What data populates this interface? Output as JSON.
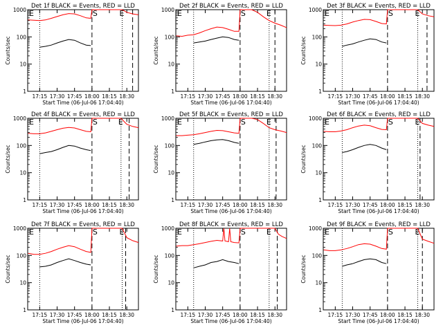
{
  "colors": {
    "events": "#000000",
    "lld": "#ff0000",
    "axes": "#000000",
    "background": "#ffffff"
  },
  "chart_data": [
    {
      "type": "line",
      "title": "Det 1f BLACK = Events, RED = LLD",
      "xlabel": "Start Time (06-Jul-06 17:04:40)",
      "ylabel": "Counts/sec",
      "yscale": "log",
      "ylim": [
        1,
        1000
      ],
      "xlim": [
        "17:04:40",
        "18:40:00"
      ],
      "xticks": [
        "17:15",
        "17:30",
        "17:45",
        "18:00",
        "18:15",
        "18:30"
      ],
      "yticks": [
        "1",
        "10",
        "100",
        "1000"
      ],
      "markers": [
        "E",
        "S",
        "E"
      ],
      "vlines_dashed": [
        "18:00",
        "18:35"
      ],
      "vlines_dotted": [
        "17:15",
        "18:26"
      ],
      "series": [
        {
          "name": "BLACK = Events",
          "color": "black",
          "x": [
            "17:15",
            "17:20",
            "17:25",
            "17:30",
            "17:35",
            "17:40",
            "17:45",
            "17:50",
            "17:55",
            "17:59"
          ],
          "y": [
            42,
            45,
            50,
            60,
            70,
            80,
            75,
            60,
            50,
            48
          ]
        },
        {
          "name": "RED = LLD",
          "color": "red",
          "x": [
            "17:05",
            "17:10",
            "17:15",
            "17:20",
            "17:25",
            "17:30",
            "17:35",
            "17:40",
            "17:45",
            "17:50",
            "17:55",
            "17:59",
            "18:00",
            "18:26",
            "18:30",
            "18:35",
            "18:40"
          ],
          "y": [
            420,
            410,
            400,
            420,
            480,
            560,
            650,
            720,
            700,
            600,
            500,
            480,
            1000,
            1000,
            800,
            700,
            650
          ]
        }
      ]
    },
    {
      "type": "line",
      "title": "Det 2f BLACK = Events, RED = LLD",
      "xlabel": "Start Time (06-Jul-06 17:04:40)",
      "ylabel": "Counts/sec",
      "yscale": "log",
      "ylim": [
        1,
        1000
      ],
      "xlim": [
        "17:04:40",
        "18:40:00"
      ],
      "xticks": [
        "17:15",
        "17:30",
        "17:45",
        "18:00",
        "18:15",
        "18:30"
      ],
      "yticks": [
        "1",
        "10",
        "100",
        "1000"
      ],
      "markers": [
        "E",
        "S",
        "E"
      ],
      "vlines_dashed": [
        "18:00",
        "18:30"
      ],
      "vlines_dotted": [
        "17:20",
        "18:25"
      ],
      "series": [
        {
          "name": "BLACK = Events",
          "color": "black",
          "x": [
            "17:20",
            "17:25",
            "17:30",
            "17:35",
            "17:40",
            "17:45",
            "17:50",
            "17:55",
            "17:59"
          ],
          "y": [
            60,
            65,
            70,
            80,
            90,
            100,
            95,
            80,
            75
          ]
        },
        {
          "name": "RED = LLD",
          "color": "red",
          "x": [
            "17:05",
            "17:10",
            "17:15",
            "17:20",
            "17:25",
            "17:30",
            "17:35",
            "17:40",
            "17:45",
            "17:50",
            "17:55",
            "17:59",
            "18:00",
            "18:05",
            "18:10",
            "18:15",
            "18:20",
            "18:25",
            "18:30",
            "18:35",
            "18:40"
          ],
          "y": [
            110,
            105,
            115,
            120,
            140,
            170,
            200,
            230,
            220,
            190,
            160,
            160,
            1000,
            1000,
            1000,
            800,
            550,
            400,
            320,
            270,
            220
          ]
        }
      ]
    },
    {
      "type": "line",
      "title": "Det 3f BLACK = Events, RED = LLD",
      "xlabel": "Start Time (06-Jul-06 17:04:40)",
      "ylabel": "Counts/sec",
      "yscale": "log",
      "ylim": [
        1,
        1000
      ],
      "xlim": [
        "17:04:40",
        "18:40:00"
      ],
      "xticks": [
        "17:15",
        "17:30",
        "17:45",
        "18:00",
        "18:15",
        "18:30"
      ],
      "yticks": [
        "1",
        "10",
        "100",
        "1000"
      ],
      "markers": [
        "E",
        "S",
        "E"
      ],
      "vlines_dashed": [
        "18:00",
        "18:34"
      ],
      "vlines_dotted": [
        "17:21",
        "18:26"
      ],
      "series": [
        {
          "name": "BLACK = Events",
          "color": "black",
          "x": [
            "17:21",
            "17:25",
            "17:30",
            "17:35",
            "17:40",
            "17:45",
            "17:50",
            "17:55",
            "17:59"
          ],
          "y": [
            45,
            50,
            55,
            65,
            75,
            85,
            80,
            65,
            60
          ]
        },
        {
          "name": "RED = LLD",
          "color": "red",
          "x": [
            "17:05",
            "17:10",
            "17:15",
            "17:20",
            "17:25",
            "17:30",
            "17:35",
            "17:40",
            "17:45",
            "17:50",
            "17:55",
            "17:59",
            "18:00",
            "18:26",
            "18:30",
            "18:35",
            "18:40"
          ],
          "y": [
            270,
            265,
            260,
            270,
            300,
            350,
            400,
            440,
            430,
            370,
            310,
            300,
            1000,
            1000,
            700,
            600,
            550
          ]
        }
      ]
    },
    {
      "type": "line",
      "title": "Det 4f BLACK = Events, RED = LLD",
      "xlabel": "Start Time (06-Jul-06 17:04:40)",
      "ylabel": "Counts/sec",
      "yscale": "log",
      "ylim": [
        1,
        1000
      ],
      "xlim": [
        "17:04:40",
        "18:40:00"
      ],
      "xticks": [
        "17:15",
        "17:30",
        "17:45",
        "18:00",
        "18:15",
        "18:30"
      ],
      "yticks": [
        "1",
        "10",
        "100",
        "1000"
      ],
      "markers": [
        "E",
        "S",
        "E"
      ],
      "vlines_dashed": [
        "18:00",
        "18:32"
      ],
      "vlines_dotted": [
        "17:15",
        "18:25"
      ],
      "series": [
        {
          "name": "BLACK = Events",
          "color": "black",
          "x": [
            "17:15",
            "17:20",
            "17:25",
            "17:30",
            "17:35",
            "17:40",
            "17:45",
            "17:50",
            "17:55",
            "17:59"
          ],
          "y": [
            50,
            55,
            60,
            70,
            85,
            100,
            95,
            80,
            70,
            65
          ]
        },
        {
          "name": "RED = LLD",
          "color": "red",
          "x": [
            "17:05",
            "17:10",
            "17:15",
            "17:20",
            "17:25",
            "17:30",
            "17:35",
            "17:40",
            "17:45",
            "17:50",
            "17:55",
            "17:59",
            "18:00",
            "18:25",
            "18:30",
            "18:35",
            "18:40"
          ],
          "y": [
            280,
            270,
            270,
            290,
            330,
            380,
            430,
            460,
            440,
            380,
            330,
            320,
            1000,
            1000,
            600,
            500,
            450
          ]
        }
      ]
    },
    {
      "type": "line",
      "title": "Det 5f BLACK = Events, RED = LLD",
      "xlabel": "Start Time (06-Jul-06 17:04:40)",
      "ylabel": "Counts/sec",
      "yscale": "log",
      "ylim": [
        1,
        1000
      ],
      "xlim": [
        "17:04:40",
        "18:40:00"
      ],
      "xticks": [
        "17:15",
        "17:30",
        "17:45",
        "18:00",
        "18:15",
        "18:30"
      ],
      "yticks": [
        "1",
        "10",
        "100",
        "1000"
      ],
      "markers": [
        "E",
        "S",
        "E"
      ],
      "vlines_dashed": [
        "18:00",
        "18:31"
      ],
      "vlines_dotted": [
        "17:20",
        "18:25"
      ],
      "series": [
        {
          "name": "BLACK = Events",
          "color": "black",
          "x": [
            "17:20",
            "17:25",
            "17:30",
            "17:35",
            "17:40",
            "17:45",
            "17:50",
            "17:55",
            "17:59"
          ],
          "y": [
            110,
            120,
            135,
            150,
            160,
            165,
            150,
            130,
            120
          ]
        },
        {
          "name": "RED = LLD",
          "color": "red",
          "x": [
            "17:05",
            "17:10",
            "17:15",
            "17:20",
            "17:25",
            "17:30",
            "17:35",
            "17:40",
            "17:45",
            "17:50",
            "17:55",
            "17:59",
            "18:00",
            "18:05",
            "18:10",
            "18:15",
            "18:20",
            "18:25",
            "18:30",
            "18:35",
            "18:40"
          ],
          "y": [
            230,
            230,
            240,
            250,
            270,
            300,
            330,
            360,
            350,
            320,
            290,
            280,
            1000,
            1000,
            1000,
            900,
            650,
            450,
            380,
            340,
            300
          ]
        }
      ]
    },
    {
      "type": "line",
      "title": "Det 6f BLACK = Events, RED = LLD",
      "xlabel": "Start Time (06-Jul-06 17:04:40)",
      "ylabel": "Counts/sec",
      "yscale": "log",
      "ylim": [
        1,
        1000
      ],
      "xlim": [
        "17:04:40",
        "18:40:00"
      ],
      "xticks": [
        "17:15",
        "17:30",
        "17:45",
        "18:00",
        "18:15",
        "18:30"
      ],
      "yticks": [
        "1",
        "10",
        "100",
        "1000"
      ],
      "markers": [
        "E",
        "S",
        "E"
      ],
      "vlines_dashed": [
        "18:00",
        "18:28"
      ],
      "vlines_dotted": [
        "17:21",
        "18:26"
      ],
      "series": [
        {
          "name": "BLACK = Events",
          "color": "black",
          "x": [
            "17:21",
            "17:25",
            "17:30",
            "17:35",
            "17:40",
            "17:45",
            "17:50",
            "17:55",
            "17:59"
          ],
          "y": [
            55,
            60,
            70,
            85,
            100,
            110,
            100,
            80,
            70
          ]
        },
        {
          "name": "RED = LLD",
          "color": "red",
          "x": [
            "17:05",
            "17:10",
            "17:15",
            "17:20",
            "17:25",
            "17:30",
            "17:35",
            "17:40",
            "17:45",
            "17:50",
            "17:55",
            "17:59",
            "18:00",
            "18:26",
            "18:30",
            "18:35",
            "18:40"
          ],
          "y": [
            330,
            320,
            320,
            340,
            380,
            450,
            520,
            560,
            530,
            450,
            390,
            380,
            1000,
            1000,
            650,
            560,
            500
          ]
        }
      ]
    },
    {
      "type": "line",
      "title": "Det 7f BLACK = Events, RED = LLD",
      "xlabel": "Start Time (06-Jul-06 17:04:40)",
      "ylabel": "Counts/sec",
      "yscale": "log",
      "ylim": [
        1,
        1000
      ],
      "xlim": [
        "17:04:40",
        "18:40:00"
      ],
      "xticks": [
        "17:15",
        "17:30",
        "17:45",
        "18:00",
        "18:15",
        "18:30"
      ],
      "yticks": [
        "1",
        "10",
        "100",
        "1000"
      ],
      "markers": [
        "E",
        "S",
        "E"
      ],
      "vlines_dashed": [
        "18:00",
        "18:29"
      ],
      "vlines_dotted": [
        "17:15",
        "18:26"
      ],
      "series": [
        {
          "name": "BLACK = Events",
          "color": "black",
          "x": [
            "17:15",
            "17:20",
            "17:25",
            "17:30",
            "17:35",
            "17:40",
            "17:45",
            "17:50",
            "17:55",
            "17:59"
          ],
          "y": [
            38,
            40,
            45,
            55,
            65,
            75,
            65,
            55,
            48,
            45
          ]
        },
        {
          "name": "RED = LLD",
          "color": "red",
          "x": [
            "17:05",
            "17:10",
            "17:15",
            "17:20",
            "17:25",
            "17:30",
            "17:35",
            "17:40",
            "17:45",
            "17:50",
            "17:55",
            "17:59",
            "18:00",
            "18:26",
            "18:30",
            "18:35",
            "18:40"
          ],
          "y": [
            120,
            110,
            110,
            120,
            140,
            170,
            200,
            230,
            210,
            170,
            140,
            130,
            1000,
            1000,
            450,
            350,
            300
          ]
        }
      ]
    },
    {
      "type": "line",
      "title": "Det 8f BLACK = Events, RED = LLD",
      "xlabel": "Start Time (06-Jul-06 17:04:40)",
      "ylabel": "Counts/sec",
      "yscale": "log",
      "ylim": [
        1,
        1000
      ],
      "xlim": [
        "17:04:40",
        "18:40:00"
      ],
      "xticks": [
        "17:15",
        "17:30",
        "17:45",
        "18:00",
        "18:15",
        "18:30"
      ],
      "yticks": [
        "1",
        "10",
        "100",
        "1000"
      ],
      "markers": [
        "E",
        "S",
        "E"
      ],
      "vlines_dashed": [
        "18:00",
        "18:32"
      ],
      "vlines_dotted": [
        "17:20",
        "18:25"
      ],
      "series": [
        {
          "name": "BLACK = Events",
          "color": "black",
          "x": [
            "17:20",
            "17:25",
            "17:30",
            "17:35",
            "17:40",
            "17:45",
            "17:50",
            "17:55",
            "17:59"
          ],
          "y": [
            35,
            40,
            45,
            55,
            60,
            70,
            60,
            55,
            50
          ]
        },
        {
          "name": "RED = LLD",
          "color": "red",
          "x": [
            "17:05",
            "17:10",
            "17:15",
            "17:20",
            "17:25",
            "17:30",
            "17:35",
            "17:40",
            "17:45",
            "17:46",
            "17:47",
            "17:50",
            "17:51",
            "17:52",
            "17:55",
            "17:59",
            "18:00",
            "18:30",
            "18:33",
            "18:36",
            "18:40"
          ],
          "y": [
            220,
            230,
            230,
            250,
            270,
            300,
            330,
            360,
            340,
            1000,
            340,
            320,
            1000,
            320,
            300,
            290,
            1000,
            1000,
            600,
            500,
            420
          ]
        }
      ]
    },
    {
      "type": "line",
      "title": "Det 9f BLACK = Events, RED = LLD",
      "xlabel": "Start Time (06-Jul-06 17:04:40)",
      "ylabel": "Counts/sec",
      "yscale": "log",
      "ylim": [
        1,
        1000
      ],
      "xlim": [
        "17:04:40",
        "18:40:00"
      ],
      "xticks": [
        "17:15",
        "17:30",
        "17:45",
        "18:00",
        "18:15",
        "18:30"
      ],
      "yticks": [
        "1",
        "10",
        "100",
        "1000"
      ],
      "markers": [
        "E",
        "S",
        "E"
      ],
      "vlines_dashed": [
        "18:00",
        "18:30"
      ],
      "vlines_dotted": [
        "17:21",
        "18:26"
      ],
      "series": [
        {
          "name": "BLACK = Events",
          "color": "black",
          "x": [
            "17:21",
            "17:25",
            "17:30",
            "17:35",
            "17:40",
            "17:45",
            "17:50",
            "17:55",
            "17:59"
          ],
          "y": [
            40,
            45,
            50,
            60,
            70,
            75,
            70,
            55,
            50
          ]
        },
        {
          "name": "RED = LLD",
          "color": "red",
          "x": [
            "17:05",
            "17:10",
            "17:15",
            "17:20",
            "17:25",
            "17:30",
            "17:35",
            "17:40",
            "17:45",
            "17:50",
            "17:55",
            "17:59",
            "18:00",
            "18:26",
            "18:30",
            "18:35",
            "18:40"
          ],
          "y": [
            160,
            150,
            150,
            160,
            180,
            210,
            250,
            270,
            260,
            220,
            180,
            170,
            1000,
            1000,
            400,
            330,
            280
          ]
        }
      ]
    }
  ]
}
